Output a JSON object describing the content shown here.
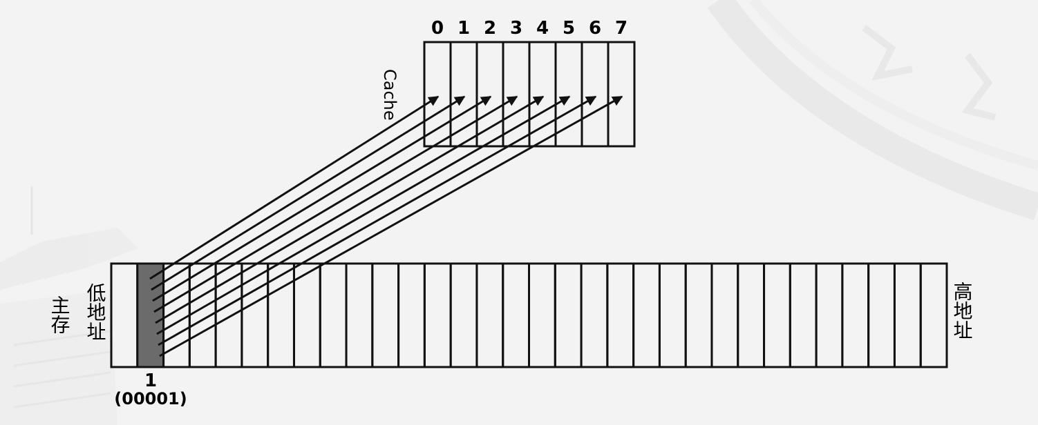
{
  "cache": {
    "label": "Cache",
    "slot_labels": [
      "0",
      "1",
      "2",
      "3",
      "4",
      "5",
      "6",
      "7"
    ]
  },
  "memory": {
    "label": "主存",
    "low_address_label": "低地址",
    "high_address_label": "高地址",
    "block_count": 32,
    "highlighted_block_number": "1",
    "highlighted_block_binary": "(00001)"
  },
  "colors": {
    "line": "#111111",
    "highlight": "#6b6b6b",
    "background": "#f3f3f3",
    "watermark": "#e2e2e2"
  }
}
